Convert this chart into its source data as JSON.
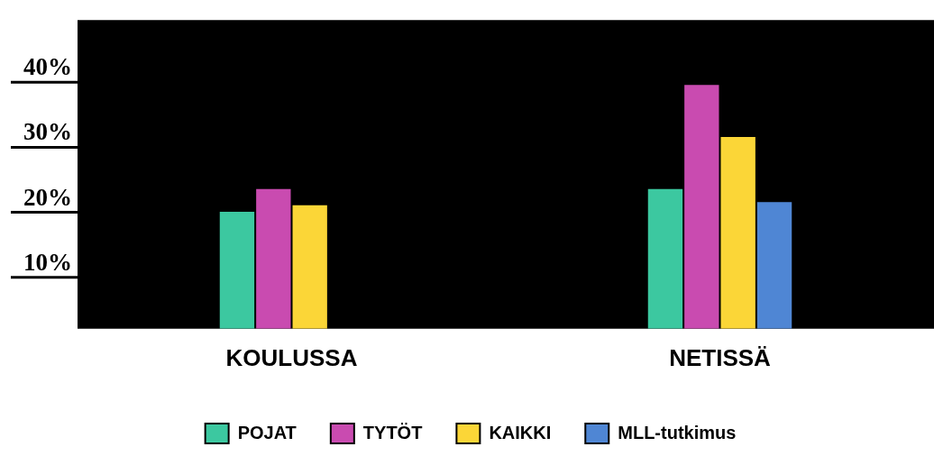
{
  "chart_data": {
    "type": "bar",
    "categories": [
      "KOULUSSA",
      "NETISSÄ"
    ],
    "series": [
      {
        "name": "POJAT",
        "color": "#3cc8a0",
        "values": [
          18,
          21.5
        ]
      },
      {
        "name": "TYTÖT",
        "color": "#c94bb0",
        "values": [
          21.5,
          37.5
        ]
      },
      {
        "name": "KAIKKI",
        "color": "#fbd637",
        "values": [
          19,
          29.5
        ]
      },
      {
        "name": "MLL-tutkimus",
        "color": "#4f86d4",
        "values": [
          null,
          19.5
        ]
      }
    ],
    "ylim": [
      0,
      47.5
    ],
    "yticks": [
      {
        "value": 10,
        "label": "10%"
      },
      {
        "value": 20,
        "label": "20%"
      },
      {
        "value": 30,
        "label": "30%"
      },
      {
        "value": 40,
        "label": "40%"
      }
    ],
    "grid": false,
    "legend": "bottom"
  }
}
